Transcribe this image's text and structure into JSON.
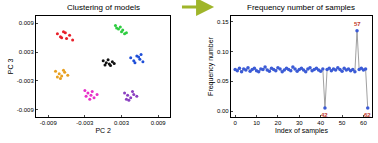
{
  "chart_data": [
    {
      "type": "scatter",
      "title": "Clustering of models",
      "x_label": "PC 2",
      "y_label": "PC 3",
      "xlim": [
        -0.011,
        0.011
      ],
      "ylim": [
        -0.0105,
        0.0105
      ],
      "xticks": [
        -0.009,
        -0.003,
        0.003,
        0.009
      ],
      "yticks": [
        -0.009,
        -0.003,
        0.003,
        0.009
      ],
      "grid": false,
      "marker": "circle",
      "series": [
        {
          "color": "#e8202a",
          "x": [
            -0.0075,
            -0.007,
            -0.0065,
            -0.006,
            -0.0055,
            -0.005,
            -0.0062,
            -0.0068
          ],
          "y": [
            0.0068,
            0.0062,
            0.0072,
            0.0058,
            0.0065,
            0.0055,
            0.007,
            0.006
          ]
        },
        {
          "color": "#2ecc40",
          "x": [
            0.002,
            0.0025,
            0.003,
            0.0035,
            0.0028,
            0.0032,
            0.0022,
            0.0038
          ],
          "y": [
            0.0085,
            0.0078,
            0.0072,
            0.0068,
            0.0082,
            0.0076,
            0.008,
            0.007
          ]
        },
        {
          "color": "#111111",
          "x": [
            0.0,
            0.0005,
            0.001,
            0.0015,
            0.0008,
            0.0003,
            0.0012,
            0.0018
          ],
          "y": [
            0.0012,
            0.0008,
            0.0005,
            0.001,
            0.0014,
            0.0003,
            0.0002,
            0.0006
          ]
        },
        {
          "color": "#1f4fd8",
          "x": [
            0.0045,
            0.005,
            0.0055,
            0.006,
            0.0065,
            0.0052,
            0.0058,
            0.0062
          ],
          "y": [
            0.0018,
            0.0012,
            0.0022,
            0.0015,
            0.001,
            0.0008,
            0.002,
            0.0025
          ]
        },
        {
          "color": "#e8a020",
          "x": [
            -0.0078,
            -0.0072,
            -0.0068,
            -0.0063,
            -0.0058,
            -0.007,
            -0.0065,
            -0.0075
          ],
          "y": [
            -0.001,
            -0.0015,
            -0.002,
            -0.0012,
            -0.0018,
            -0.0025,
            -0.0008,
            -0.0022
          ]
        },
        {
          "color": "#e830c8",
          "x": [
            -0.003,
            -0.0025,
            -0.002,
            -0.0015,
            -0.001,
            -0.0022,
            -0.0018,
            -0.0028
          ],
          "y": [
            -0.005,
            -0.0055,
            -0.006,
            -0.0065,
            -0.0058,
            -0.0068,
            -0.0052,
            -0.0062
          ]
        },
        {
          "color": "#8a3fc0",
          "x": [
            0.0035,
            0.004,
            0.0045,
            0.005,
            0.0055,
            0.0042,
            0.0048,
            0.0038
          ],
          "y": [
            -0.0055,
            -0.006,
            -0.0065,
            -0.0058,
            -0.0062,
            -0.007,
            -0.0052,
            -0.0068
          ]
        }
      ]
    },
    {
      "type": "line",
      "title": "Frequency number of samples",
      "x_label": "Index of samples",
      "y_label": "Frequency number",
      "xlim": [
        -2,
        64
      ],
      "ylim": [
        -0.01,
        0.16
      ],
      "xticks": [
        0,
        10,
        20,
        30,
        40,
        50,
        60
      ],
      "yticks": [
        {
          "value": 0,
          "label": "0.00"
        },
        {
          "value": 0.05,
          "label": "0.05"
        },
        {
          "value": 0.1,
          "label": "0.10"
        },
        {
          "value": 0.15,
          "label": "0.15"
        }
      ],
      "grid": false,
      "marker": "circle",
      "series": [
        {
          "color": "#3b5bd6",
          "x": [
            0,
            1,
            2,
            3,
            4,
            5,
            6,
            7,
            8,
            9,
            10,
            11,
            12,
            13,
            14,
            15,
            16,
            17,
            18,
            19,
            20,
            21,
            22,
            23,
            24,
            25,
            26,
            27,
            28,
            29,
            30,
            31,
            32,
            33,
            34,
            35,
            36,
            37,
            38,
            39,
            40,
            41,
            42,
            43,
            44,
            45,
            46,
            47,
            48,
            49,
            50,
            51,
            52,
            53,
            54,
            55,
            56,
            57,
            58,
            59,
            60,
            61,
            62
          ],
          "values": [
            0.07,
            0.068,
            0.072,
            0.066,
            0.071,
            0.069,
            0.073,
            0.067,
            0.07,
            0.072,
            0.068,
            0.066,
            0.071,
            0.07,
            0.074,
            0.069,
            0.067,
            0.072,
            0.07,
            0.068,
            0.073,
            0.071,
            0.066,
            0.069,
            0.072,
            0.07,
            0.068,
            0.074,
            0.071,
            0.067,
            0.07,
            0.072,
            0.069,
            0.066,
            0.071,
            0.073,
            0.068,
            0.07,
            0.072,
            0.069,
            0.067,
            0.071,
            0.005,
            0.07,
            0.072,
            0.068,
            0.071,
            0.069,
            0.073,
            0.07,
            0.067,
            0.072,
            0.069,
            0.071,
            0.068,
            0.07,
            0.066,
            0.135,
            0.07,
            0.072,
            0.069,
            0.071,
            0.005
          ]
        }
      ],
      "annotations": [
        {
          "x": 42,
          "y": 0.005,
          "text": "42"
        },
        {
          "x": 57,
          "y": 0.135,
          "text": "57"
        },
        {
          "x": 62,
          "y": 0.005,
          "text": "62"
        }
      ]
    }
  ]
}
